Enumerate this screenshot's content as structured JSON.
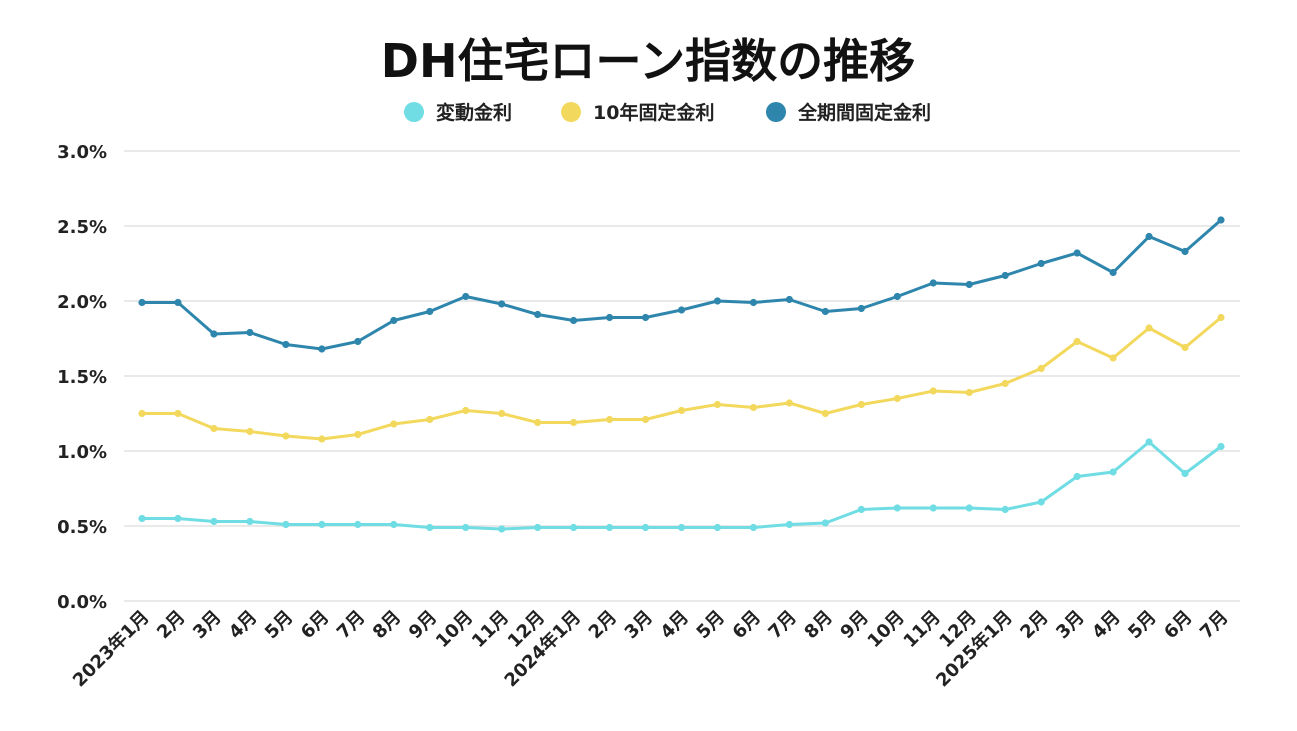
{
  "chart_data": {
    "type": "line",
    "title": "DH住宅ローン指数の推移",
    "xlabel": "",
    "ylabel": "",
    "ylim": [
      0,
      3.0
    ],
    "yticks": [
      "0.0%",
      "0.5%",
      "1.0%",
      "1.5%",
      "2.0%",
      "2.5%",
      "3.0%"
    ],
    "grid": true,
    "legend_position": "top-center",
    "categories": [
      "2023年1月",
      "2月",
      "3月",
      "4月",
      "5月",
      "6月",
      "7月",
      "8月",
      "9月",
      "10月",
      "11月",
      "12月",
      "2024年1月",
      "2月",
      "3月",
      "4月",
      "5月",
      "6月",
      "7月",
      "8月",
      "9月",
      "10月",
      "11月",
      "12月",
      "2025年1月",
      "2月",
      "3月",
      "4月",
      "5月",
      "6月",
      "7月"
    ],
    "series": [
      {
        "name": "変動金利",
        "color": "#6fdde3",
        "values": [
          0.55,
          0.55,
          0.53,
          0.53,
          0.51,
          0.51,
          0.51,
          0.51,
          0.49,
          0.49,
          0.48,
          0.49,
          0.49,
          0.49,
          0.49,
          0.49,
          0.49,
          0.49,
          0.51,
          0.52,
          0.61,
          0.62,
          0.62,
          0.62,
          0.61,
          0.66,
          0.83,
          0.86,
          1.06,
          0.85,
          1.03
        ]
      },
      {
        "name": "10年固定金利",
        "color": "#f3d85e",
        "values": [
          1.25,
          1.25,
          1.15,
          1.13,
          1.1,
          1.08,
          1.11,
          1.18,
          1.21,
          1.27,
          1.25,
          1.19,
          1.19,
          1.21,
          1.21,
          1.27,
          1.31,
          1.29,
          1.32,
          1.25,
          1.31,
          1.35,
          1.4,
          1.39,
          1.45,
          1.55,
          1.73,
          1.62,
          1.82,
          1.69,
          1.89
        ]
      },
      {
        "name": "全期間固定金利",
        "color": "#2f86ad",
        "values": [
          1.99,
          1.99,
          1.78,
          1.79,
          1.71,
          1.68,
          1.73,
          1.87,
          1.93,
          2.03,
          1.98,
          1.91,
          1.87,
          1.89,
          1.89,
          1.94,
          2.0,
          1.99,
          2.01,
          1.93,
          1.95,
          2.03,
          2.12,
          2.11,
          2.17,
          2.25,
          2.32,
          2.19,
          2.43,
          2.33,
          2.54
        ]
      }
    ]
  }
}
